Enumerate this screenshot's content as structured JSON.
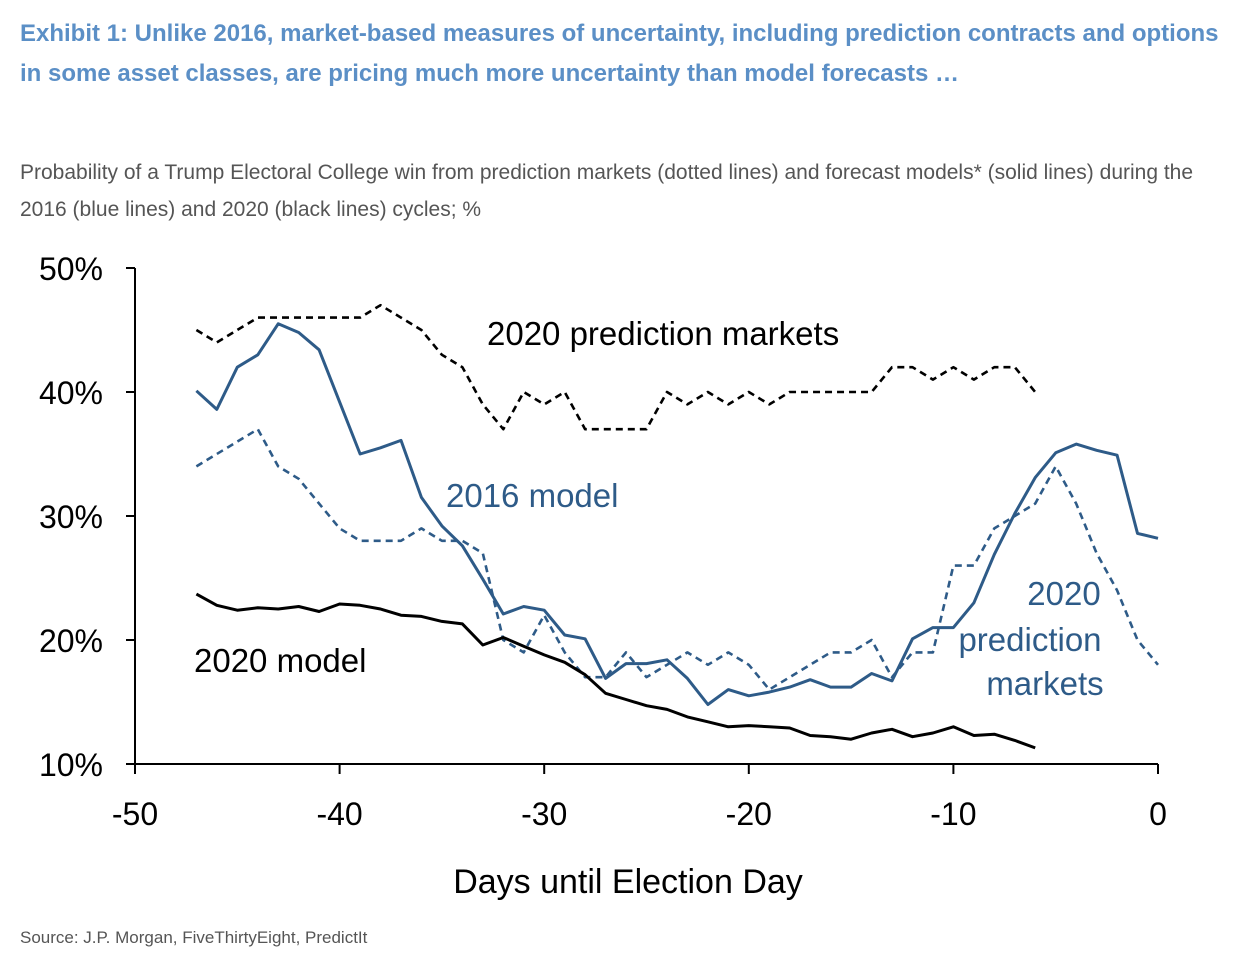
{
  "header": {
    "title": "Exhibit 1: Unlike 2016, market-based measures of uncertainty, including prediction contracts and options in some asset classes, are pricing much more uncertainty than model forecasts …",
    "subtitle": "Probability of a Trump Electoral College win from prediction markets (dotted lines) and forecast models* (solid lines) during the 2016 (blue lines) and 2020 (black lines) cycles; %"
  },
  "footer": {
    "source": "Source: J.P. Morgan, FiveThirtyEight, PredictIt"
  },
  "colors": {
    "title": "#5b8fc6",
    "blue_series": "#2e5b88",
    "black_series": "#000000",
    "subtitle": "#555555"
  },
  "chart_data": {
    "type": "line",
    "xlabel": "Days until Election Day",
    "ylabel": "",
    "xlim": [
      -50,
      0
    ],
    "ylim": [
      10,
      50
    ],
    "xticks": [
      "-50",
      "-40",
      "-30",
      "-20",
      "-10",
      "0"
    ],
    "yticks": [
      "10%",
      "20%",
      "30%",
      "40%",
      "50%"
    ],
    "annotations": {
      "pm2020": "2020 prediction markets",
      "model2016": "2016 model",
      "pm2016_line1": "2020",
      "pm2016_line2": "prediction",
      "pm2016_line3": "markets",
      "model2020": "2020 model"
    },
    "series": [
      {
        "id": "pm2020",
        "color": "#000000",
        "dash": true,
        "x": [
          -47,
          -46,
          -45,
          -44,
          -43,
          -42,
          -41,
          -40,
          -39,
          -38,
          -37,
          -36,
          -35,
          -34,
          -33,
          -32,
          -31,
          -30,
          -29,
          -28,
          -27,
          -26,
          -25,
          -24,
          -23,
          -22,
          -21,
          -20,
          -19,
          -18,
          -17,
          -16,
          -15,
          -14,
          -13,
          -12,
          -11,
          -10,
          -9,
          -8,
          -7,
          -6
        ],
        "y": [
          45,
          44,
          45,
          46,
          46,
          46,
          46,
          46,
          46,
          47,
          46,
          45,
          43,
          42,
          39,
          37,
          40,
          39,
          40,
          37,
          37,
          37,
          37,
          40,
          39,
          40,
          39,
          40,
          39,
          40,
          40,
          40,
          40,
          40,
          42,
          42,
          41,
          42,
          41,
          42,
          42,
          40
        ]
      },
      {
        "id": "model2016",
        "color": "#2e5b88",
        "dash": false,
        "x": [
          -47,
          -46,
          -45,
          -44,
          -43,
          -42,
          -41,
          -40,
          -39,
          -38,
          -37,
          -36,
          -35,
          -34,
          -33,
          -32,
          -31,
          -30,
          -29,
          -28,
          -27,
          -26,
          -25,
          -24,
          -23,
          -22,
          -21,
          -20,
          -19,
          -18,
          -17,
          -16,
          -15,
          -14,
          -13,
          -12,
          -11,
          -10,
          -9,
          -8,
          -7,
          -6,
          -5,
          -4,
          -3,
          -2,
          -1,
          0
        ],
        "y": [
          40.1,
          38.6,
          42,
          43,
          45.5,
          44.8,
          43.4,
          39.2,
          35,
          35.5,
          36.1,
          31.5,
          29.2,
          27.6,
          24.9,
          22.1,
          22.7,
          22.4,
          20.4,
          20.1,
          16.9,
          18.1,
          18.1,
          18.4,
          16.9,
          14.8,
          16,
          15.5,
          15.8,
          16.2,
          16.8,
          16.2,
          16.2,
          17.3,
          16.7,
          20.1,
          21,
          21,
          23,
          26.9,
          30.2,
          33.1,
          35.1,
          35.8,
          35.3,
          34.9,
          28.6,
          28.2
        ]
      },
      {
        "id": "pm2016",
        "color": "#2e5b88",
        "dash": true,
        "x": [
          -47,
          -46,
          -45,
          -44,
          -43,
          -42,
          -41,
          -40,
          -39,
          -38,
          -37,
          -36,
          -35,
          -34,
          -33,
          -32,
          -31,
          -30,
          -29,
          -28,
          -27,
          -26,
          -25,
          -24,
          -23,
          -22,
          -21,
          -20,
          -19,
          -18,
          -17,
          -16,
          -15,
          -14,
          -13,
          -12,
          -11,
          -10,
          -9,
          -8,
          -7,
          -6,
          -5,
          -4,
          -3,
          -2,
          -1,
          0
        ],
        "y": [
          34,
          35,
          36,
          37,
          34,
          33,
          31,
          29,
          28,
          28,
          28,
          29,
          28,
          28,
          27,
          20,
          19,
          22,
          19,
          17,
          17,
          19,
          17,
          18,
          19,
          18,
          19,
          18,
          16,
          17,
          18,
          19,
          19,
          20,
          17,
          19,
          19,
          26,
          26,
          29,
          30,
          31,
          34,
          31,
          27,
          24,
          20,
          18
        ]
      },
      {
        "id": "model2020",
        "color": "#000000",
        "dash": false,
        "x": [
          -47,
          -46,
          -45,
          -44,
          -43,
          -42,
          -41,
          -40,
          -39,
          -38,
          -37,
          -36,
          -35,
          -34,
          -33,
          -32,
          -31,
          -30,
          -29,
          -28,
          -27,
          -26,
          -25,
          -24,
          -23,
          -22,
          -21,
          -20,
          -19,
          -18,
          -17,
          -16,
          -15,
          -14,
          -13,
          -12,
          -11,
          -10,
          -9,
          -8,
          -7,
          -6
        ],
        "y": [
          23.7,
          22.8,
          22.4,
          22.6,
          22.5,
          22.7,
          22.3,
          22.9,
          22.8,
          22.5,
          22,
          21.9,
          21.5,
          21.3,
          19.6,
          20.2,
          19.5,
          18.8,
          18.2,
          17.2,
          15.7,
          15.2,
          14.7,
          14.4,
          13.8,
          13.4,
          13,
          13.1,
          13,
          12.9,
          12.3,
          12.2,
          12,
          12.5,
          12.8,
          12.2,
          12.5,
          13,
          12.3,
          12.4,
          11.9,
          11.3
        ]
      }
    ]
  }
}
